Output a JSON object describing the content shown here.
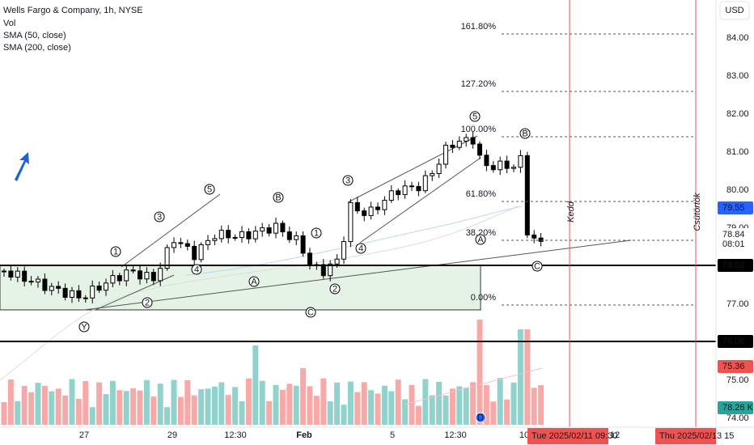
{
  "header": {
    "title": "Wells Fargo & Company, 1h, NYSE",
    "lines": [
      "Vol",
      "SMA (50, close)",
      "SMA (200, close)"
    ]
  },
  "price_axis": {
    "currency": "USD",
    "labels": [
      "84.00",
      "83.00",
      "82.00",
      "81.00",
      "80.00",
      "79.00",
      "77.00",
      "75.00",
      "74.00"
    ]
  },
  "time_axis": {
    "labels": [
      "27",
      "29",
      "12:30",
      "Feb",
      "5",
      "12:30",
      "10",
      "12"
    ]
  },
  "fib_levels": [
    "161.80%",
    "127.20%",
    "100.00%",
    "61.80%",
    "38.20%",
    "0.00%"
  ],
  "waves": [
    "1",
    "3",
    "5",
    "2",
    "4",
    "B",
    "A",
    "1",
    "2",
    "C",
    "Y",
    "3",
    "4",
    "5",
    "B",
    "A",
    "C",
    "D"
  ],
  "vertical_notes": [
    "Kedd",
    "Csütörtök"
  ],
  "price_tags": [
    {
      "label": "79.55",
      "color": "#2962ff"
    },
    {
      "label": "78.84",
      "color": "#ffffff"
    },
    {
      "label": "08:01",
      "color": "#ffffff"
    },
    {
      "label": "78.02",
      "color": "#000000"
    },
    {
      "label": "76.06",
      "color": "#000000"
    },
    {
      "label": "75.36",
      "color": "#ef5350"
    },
    {
      "label": "78.26 K",
      "color": "#26a69a"
    }
  ],
  "time_tags": [
    "Tue 2025/02/11  09:30",
    "Thu 2025/02/13  15"
  ]
}
